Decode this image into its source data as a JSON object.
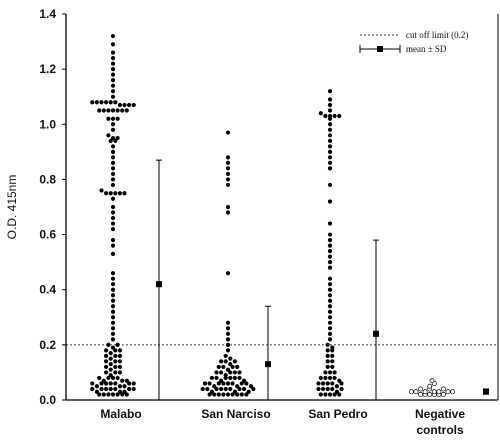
{
  "chart_data": {
    "type": "scatter",
    "title": "",
    "xlabel": "",
    "ylabel": "O.D. 415nm",
    "ylim": [
      0,
      1.4
    ],
    "yticks": [
      "0.0",
      "0.2",
      "0.4",
      "0.6",
      "0.8",
      "1.0",
      "1.2",
      "1.4"
    ],
    "categories": [
      "Malabo",
      "San Narciso",
      "San Pedro",
      "Negative controls"
    ],
    "cutoff": {
      "label": "cut off limit (0.2)",
      "value": 0.2
    },
    "mean_sd_label": "mean ± SD",
    "grid": false,
    "legend_position": "top-right",
    "series": [
      {
        "category": "Malabo",
        "marker": "filled",
        "mean": 0.42,
        "sd": 0.45,
        "values": [
          1.32,
          1.29,
          1.26,
          1.24,
          1.22,
          1.2,
          1.18,
          1.16,
          1.14,
          1.12,
          1.1,
          1.08,
          1.08,
          1.08,
          1.08,
          1.08,
          1.08,
          1.07,
          1.07,
          1.07,
          1.07,
          1.05,
          1.05,
          1.05,
          1.05,
          1.05,
          1.05,
          1.05,
          1.02,
          1.02,
          1.02,
          1.0,
          0.98,
          0.96,
          0.95,
          0.95,
          0.94,
          0.94,
          0.92,
          0.9,
          0.88,
          0.86,
          0.84,
          0.82,
          0.8,
          0.78,
          0.76,
          0.75,
          0.75,
          0.75,
          0.75,
          0.75,
          0.73,
          0.7,
          0.68,
          0.66,
          0.64,
          0.62,
          0.58,
          0.56,
          0.53,
          0.46,
          0.44,
          0.42,
          0.4,
          0.38,
          0.36,
          0.34,
          0.32,
          0.3,
          0.28,
          0.26,
          0.24,
          0.22,
          0.2,
          0.19,
          0.18,
          0.17,
          0.16,
          0.15,
          0.14,
          0.13,
          0.12,
          0.11,
          0.1,
          0.09,
          0.08,
          0.07,
          0.06,
          0.05,
          0.04,
          0.03,
          0.02,
          0.2,
          0.18,
          0.16,
          0.14,
          0.12,
          0.1,
          0.08,
          0.06,
          0.04,
          0.02,
          0.18,
          0.16,
          0.14,
          0.12,
          0.1,
          0.08,
          0.06,
          0.04,
          0.02,
          0.08,
          0.06,
          0.04,
          0.02,
          0.06,
          0.04,
          0.02,
          0.07,
          0.05,
          0.03,
          0.07,
          0.05,
          0.03,
          0.06,
          0.04,
          0.02,
          0.06,
          0.04,
          0.02
        ]
      },
      {
        "category": "San Narciso",
        "marker": "filled",
        "mean": 0.13,
        "sd": 0.21,
        "values": [
          0.97,
          0.88,
          0.86,
          0.84,
          0.82,
          0.8,
          0.78,
          0.7,
          0.68,
          0.46,
          0.28,
          0.26,
          0.24,
          0.22,
          0.2,
          0.18,
          0.16,
          0.15,
          0.14,
          0.14,
          0.13,
          0.12,
          0.12,
          0.11,
          0.1,
          0.1,
          0.09,
          0.08,
          0.08,
          0.07,
          0.06,
          0.06,
          0.05,
          0.04,
          0.04,
          0.03,
          0.02,
          0.14,
          0.12,
          0.1,
          0.08,
          0.06,
          0.04,
          0.02,
          0.12,
          0.1,
          0.08,
          0.06,
          0.04,
          0.02,
          0.1,
          0.08,
          0.06,
          0.04,
          0.02,
          0.08,
          0.06,
          0.04,
          0.02,
          0.07,
          0.05,
          0.03,
          0.06,
          0.04,
          0.02,
          0.06,
          0.04,
          0.02,
          0.05,
          0.03,
          0.02,
          0.04,
          0.02
        ]
      },
      {
        "category": "San Pedro",
        "marker": "filled",
        "mean": 0.24,
        "sd": 0.34,
        "values": [
          1.12,
          1.09,
          1.07,
          1.05,
          1.04,
          1.03,
          1.03,
          1.03,
          1.03,
          1.02,
          1.0,
          0.98,
          0.96,
          0.94,
          0.92,
          0.9,
          0.88,
          0.86,
          0.84,
          0.78,
          0.72,
          0.64,
          0.6,
          0.58,
          0.56,
          0.54,
          0.52,
          0.5,
          0.48,
          0.44,
          0.42,
          0.4,
          0.38,
          0.36,
          0.34,
          0.32,
          0.3,
          0.28,
          0.26,
          0.24,
          0.22,
          0.2,
          0.19,
          0.18,
          0.16,
          0.14,
          0.12,
          0.1,
          0.08,
          0.06,
          0.04,
          0.02,
          0.18,
          0.16,
          0.14,
          0.12,
          0.1,
          0.08,
          0.06,
          0.04,
          0.02,
          0.1,
          0.08,
          0.06,
          0.04,
          0.02,
          0.08,
          0.06,
          0.04,
          0.02,
          0.07,
          0.05,
          0.03,
          0.06,
          0.04,
          0.02
        ]
      },
      {
        "category": "Negative controls",
        "marker": "open",
        "mean": 0.03,
        "sd": 0.01,
        "values": [
          0.02,
          0.02,
          0.03,
          0.03,
          0.02,
          0.04,
          0.03,
          0.05,
          0.06,
          0.07,
          0.04,
          0.03,
          0.02,
          0.03,
          0.04,
          0.03,
          0.02,
          0.03,
          0.02
        ]
      }
    ]
  }
}
